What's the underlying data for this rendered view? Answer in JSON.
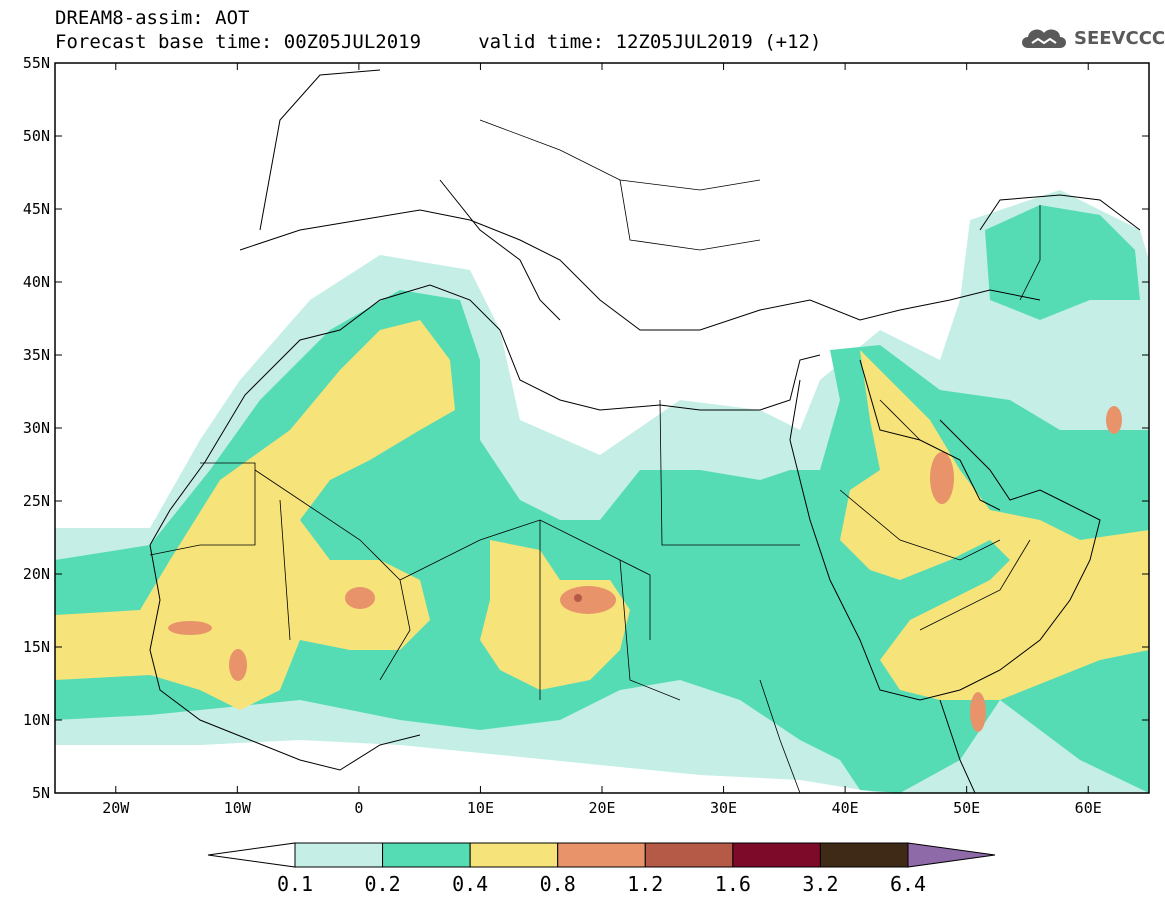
{
  "header": {
    "model_line": "DREAM8-assim: AOT",
    "time_line": "Forecast base time: 00Z05JUL2019     valid time: 12Z05JUL2019 (+12)",
    "logo_text": "SEEVCCC"
  },
  "map": {
    "lat_labels": [
      "55N",
      "50N",
      "45N",
      "40N",
      "35N",
      "30N",
      "25N",
      "20N",
      "15N",
      "10N",
      "5N"
    ],
    "lon_labels": [
      "20W",
      "10W",
      "0",
      "10E",
      "20E",
      "30E",
      "40E",
      "50E",
      "60E"
    ],
    "lat_range": [
      5,
      55
    ],
    "lon_range": [
      -25,
      65
    ],
    "colors": {
      "land": "#ffffff",
      "border": "#000000"
    }
  },
  "legend": {
    "labels": [
      "0.1",
      "0.2",
      "0.4",
      "0.8",
      "1.2",
      "1.6",
      "3.2",
      "6.4"
    ],
    "colors": [
      "#ffffff",
      "#c5efe6",
      "#55dcb5",
      "#f6e37a",
      "#e8936a",
      "#b45a46",
      "#7e0a2a",
      "#3f2a18",
      "#8f6aa8"
    ]
  }
}
